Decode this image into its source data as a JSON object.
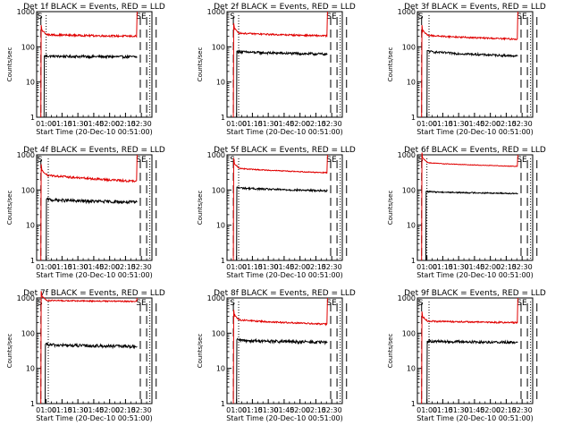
{
  "colors": {
    "events": "#000000",
    "lld": "#e00000",
    "axis": "#000000"
  },
  "chart_data": [
    {
      "type": "line",
      "title": "Det 1f BLACK = Events, RED = LLD",
      "xlabel": "Start Time (20-Dec-10 00:51:00)",
      "ylabel": "Counts/sec",
      "yscale": "log",
      "ylim": [
        1,
        1000
      ],
      "xlim_minutes": [
        51,
        160
      ],
      "x_ticks": [
        "01:00",
        "01:15",
        "01:30",
        "01:45",
        "02:00",
        "02:15",
        "02:30"
      ],
      "y_ticks": [
        "1",
        "10",
        "100",
        "1000"
      ],
      "markers": [
        "S",
        "SE"
      ],
      "dashed_lines_min": [
        55,
        149,
        155,
        164
      ],
      "dotted_lines_min": [
        60,
        158
      ],
      "series": [
        {
          "name": "Events",
          "color": "black",
          "start_min": 58,
          "end_min": 146,
          "level_start": 55,
          "level_end": 52,
          "noise": 0.08
        },
        {
          "name": "LLD",
          "color": "red",
          "start_min": 55,
          "end_min": 146,
          "level_start": 230,
          "level_end": 200,
          "noise": 0.06
        }
      ]
    },
    {
      "type": "line",
      "title": "Det 2f BLACK = Events, RED = LLD",
      "xlabel": "Start Time (20-Dec-10 00:51:00)",
      "ylabel": "Counts/sec",
      "yscale": "log",
      "ylim": [
        1,
        1000
      ],
      "xlim_minutes": [
        51,
        160
      ],
      "x_ticks": [
        "01:00",
        "01:15",
        "01:30",
        "01:45",
        "02:00",
        "02:15",
        "02:30"
      ],
      "y_ticks": [
        "1",
        "10",
        "100",
        "1000"
      ],
      "markers": [
        "S",
        "SE"
      ],
      "dashed_lines_min": [
        57,
        149,
        155,
        164
      ],
      "dotted_lines_min": [
        62,
        158
      ],
      "series": [
        {
          "name": "Events",
          "color": "black",
          "start_min": 60,
          "end_min": 146,
          "level_start": 75,
          "level_end": 62,
          "noise": 0.08
        },
        {
          "name": "LLD",
          "color": "red",
          "start_min": 57,
          "end_min": 146,
          "level_start": 260,
          "level_end": 205,
          "noise": 0.05
        }
      ]
    },
    {
      "type": "line",
      "title": "Det 3f BLACK = Events, RED = LLD",
      "xlabel": "Start Time (20-Dec-10 00:51:00)",
      "ylabel": "Counts/sec",
      "yscale": "log",
      "ylim": [
        1,
        1000
      ],
      "xlim_minutes": [
        51,
        160
      ],
      "x_ticks": [
        "01:00",
        "01:15",
        "01:30",
        "01:45",
        "02:00",
        "02:15",
        "02:30"
      ],
      "y_ticks": [
        "1",
        "10",
        "100",
        "1000"
      ],
      "markers": [
        "S",
        "SE"
      ],
      "dashed_lines_min": [
        55,
        149,
        155,
        164
      ],
      "dotted_lines_min": [
        62,
        158
      ],
      "series": [
        {
          "name": "Events",
          "color": "black",
          "start_min": 60,
          "end_min": 146,
          "level_start": 78,
          "level_end": 55,
          "noise": 0.07
        },
        {
          "name": "LLD",
          "color": "red",
          "start_min": 55,
          "end_min": 146,
          "level_start": 230,
          "level_end": 165,
          "noise": 0.05
        }
      ]
    },
    {
      "type": "line",
      "title": "Det 4f BLACK = Events, RED = LLD",
      "xlabel": "Start Time (20-Dec-10 00:51:00)",
      "ylabel": "Counts/sec",
      "yscale": "log",
      "ylim": [
        1,
        1000
      ],
      "xlim_minutes": [
        51,
        160
      ],
      "x_ticks": [
        "01:00",
        "01:15",
        "01:30",
        "01:45",
        "02:00",
        "02:15",
        "02:30"
      ],
      "y_ticks": [
        "1",
        "10",
        "100",
        "1000"
      ],
      "markers": [
        "S",
        "SE"
      ],
      "dashed_lines_min": [
        55,
        149,
        155,
        164
      ],
      "dotted_lines_min": [
        62,
        158
      ],
      "series": [
        {
          "name": "Events",
          "color": "black",
          "start_min": 60,
          "end_min": 146,
          "level_start": 55,
          "level_end": 45,
          "noise": 0.1
        },
        {
          "name": "LLD",
          "color": "red",
          "start_min": 55,
          "end_min": 146,
          "level_start": 300,
          "level_end": 175,
          "noise": 0.07
        }
      ]
    },
    {
      "type": "line",
      "title": "Det 5f BLACK = Events, RED = LLD",
      "xlabel": "Start Time (20-Dec-10 00:51:00)",
      "ylabel": "Counts/sec",
      "yscale": "log",
      "ylim": [
        1,
        1000
      ],
      "xlim_minutes": [
        51,
        160
      ],
      "x_ticks": [
        "01:00",
        "01:15",
        "01:30",
        "01:45",
        "02:00",
        "02:15",
        "02:30"
      ],
      "y_ticks": [
        "1",
        "10",
        "100",
        "1000"
      ],
      "markers": [
        "S",
        "SE"
      ],
      "dashed_lines_min": [
        57,
        149,
        155,
        164
      ],
      "dotted_lines_min": [
        62,
        158
      ],
      "series": [
        {
          "name": "Events",
          "color": "black",
          "start_min": 60,
          "end_min": 146,
          "level_start": 120,
          "level_end": 95,
          "noise": 0.06
        },
        {
          "name": "LLD",
          "color": "red",
          "start_min": 57,
          "end_min": 146,
          "level_start": 450,
          "level_end": 310,
          "noise": 0.03
        }
      ]
    },
    {
      "type": "line",
      "title": "Det 6f BLACK = Events, RED = LLD",
      "xlabel": "Start Time (20-Dec-10 00:51:00)",
      "ylabel": "Counts/sec",
      "yscale": "log",
      "ylim": [
        1,
        1000
      ],
      "xlim_minutes": [
        51,
        160
      ],
      "x_ticks": [
        "01:00",
        "01:15",
        "01:30",
        "01:45",
        "02:00",
        "02:15",
        "02:30"
      ],
      "y_ticks": [
        "1",
        "10",
        "100",
        "1000"
      ],
      "markers": [
        "S",
        "SE"
      ],
      "dashed_lines_min": [
        55,
        149,
        155,
        164
      ],
      "dotted_lines_min": [
        60,
        158
      ],
      "series": [
        {
          "name": "Events",
          "color": "black",
          "start_min": 59,
          "end_min": 146,
          "level_start": 92,
          "level_end": 80,
          "noise": 0.04
        },
        {
          "name": "LLD",
          "color": "red",
          "start_min": 55,
          "end_min": 146,
          "level_start": 640,
          "level_end": 470,
          "noise": 0.02
        }
      ]
    },
    {
      "type": "line",
      "title": "Det 7f BLACK = Events, RED = LLD",
      "xlabel": "Start Time (20-Dec-10 00:51:00)",
      "ylabel": "Counts/sec",
      "yscale": "log",
      "ylim": [
        1,
        1000
      ],
      "xlim_minutes": [
        51,
        160
      ],
      "x_ticks": [
        "01:00",
        "01:15",
        "01:30",
        "01:45",
        "02:00",
        "02:15",
        "02:30"
      ],
      "y_ticks": [
        "1",
        "10",
        "100",
        "1000"
      ],
      "markers": [
        "S",
        "SE"
      ],
      "dashed_lines_min": [
        55,
        149,
        155,
        164
      ],
      "dotted_lines_min": [
        62,
        158
      ],
      "series": [
        {
          "name": "Events",
          "color": "black",
          "start_min": 59,
          "end_min": 146,
          "level_start": 48,
          "level_end": 42,
          "noise": 0.1
        },
        {
          "name": "LLD",
          "color": "red",
          "start_min": 55,
          "end_min": 146,
          "level_start": 870,
          "level_end": 800,
          "noise": 0.04
        }
      ]
    },
    {
      "type": "line",
      "title": "Det 8f BLACK = Events, RED = LLD",
      "xlabel": "Start Time (20-Dec-10 00:51:00)",
      "ylabel": "Counts/sec",
      "yscale": "log",
      "ylim": [
        1,
        1000
      ],
      "xlim_minutes": [
        51,
        160
      ],
      "x_ticks": [
        "01:00",
        "01:15",
        "01:30",
        "01:45",
        "02:00",
        "02:15",
        "02:30"
      ],
      "y_ticks": [
        "1",
        "10",
        "100",
        "1000"
      ],
      "markers": [
        "S",
        "SE"
      ],
      "dashed_lines_min": [
        57,
        149,
        155,
        164
      ],
      "dotted_lines_min": [
        62,
        158
      ],
      "series": [
        {
          "name": "Events",
          "color": "black",
          "start_min": 60,
          "end_min": 146,
          "level_start": 65,
          "level_end": 55,
          "noise": 0.1
        },
        {
          "name": "LLD",
          "color": "red",
          "start_min": 57,
          "end_min": 146,
          "level_start": 260,
          "level_end": 180,
          "noise": 0.05
        }
      ]
    },
    {
      "type": "line",
      "title": "Det 9f BLACK = Events, RED = LLD",
      "xlabel": "Start Time (20-Dec-10 00:51:00)",
      "ylabel": "Counts/sec",
      "yscale": "log",
      "ylim": [
        1,
        1000
      ],
      "xlim_minutes": [
        51,
        160
      ],
      "x_ticks": [
        "01:00",
        "01:15",
        "01:30",
        "01:45",
        "02:00",
        "02:15",
        "02:30"
      ],
      "y_ticks": [
        "1",
        "10",
        "100",
        "1000"
      ],
      "markers": [
        "S",
        "SE"
      ],
      "dashed_lines_min": [
        55,
        149,
        155,
        164
      ],
      "dotted_lines_min": [
        62,
        158
      ],
      "series": [
        {
          "name": "Events",
          "color": "black",
          "start_min": 60,
          "end_min": 146,
          "level_start": 60,
          "level_end": 55,
          "noise": 0.08
        },
        {
          "name": "LLD",
          "color": "red",
          "start_min": 55,
          "end_min": 146,
          "level_start": 230,
          "level_end": 200,
          "noise": 0.05
        }
      ]
    }
  ]
}
